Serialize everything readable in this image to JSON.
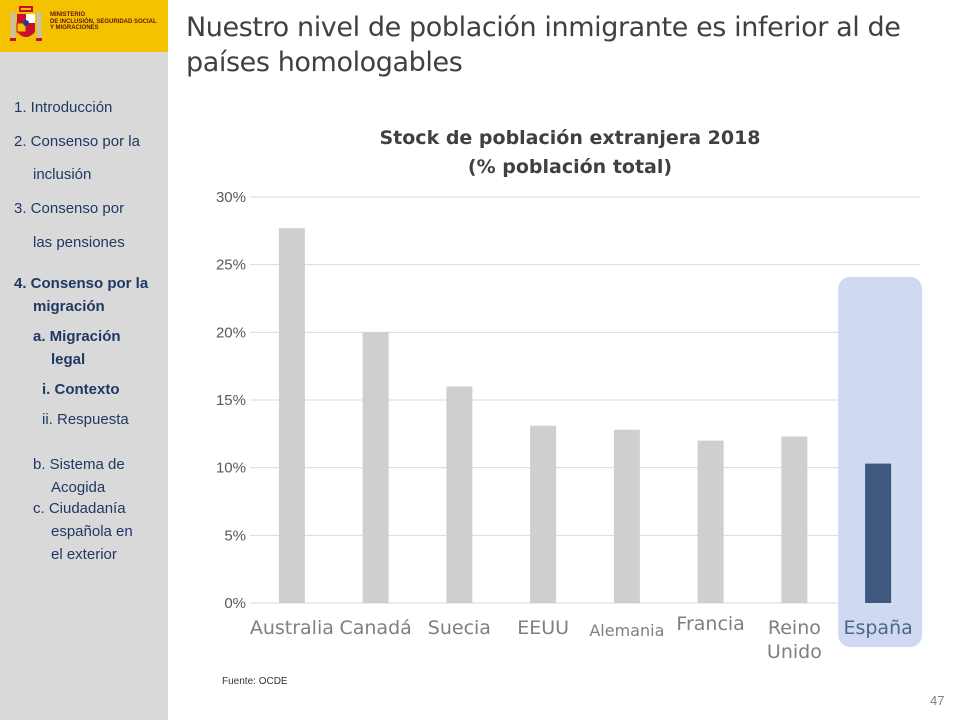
{
  "ministry": {
    "name_lines": [
      "Ministerio",
      "de Inclusión, Seguridad Social",
      "y Migraciones"
    ]
  },
  "nav": {
    "items": [
      {
        "label": "1. Introducción"
      },
      {
        "label": "2. Consenso por la"
      },
      {
        "label": "inclusión"
      },
      {
        "label": "3. Consenso por"
      },
      {
        "label": "las pensiones"
      },
      {
        "label": "4. Consenso por la"
      },
      {
        "label": "migración"
      },
      {
        "label": "a. Migración"
      },
      {
        "label": "legal"
      },
      {
        "label": "i.  Contexto"
      },
      {
        "label": "ii. Respuesta"
      },
      {
        "label": "b. Sistema de"
      },
      {
        "label": "Acogida"
      },
      {
        "label": "c.  Ciudadanía"
      },
      {
        "label": "española en"
      },
      {
        "label": "el exterior"
      }
    ]
  },
  "title": {
    "line1": "Nuestro nivel de población inmigrante es inferior al de",
    "line2": "países homologables"
  },
  "chart_data": {
    "type": "bar",
    "title": "Stock de población extranjera 2018",
    "subtitle": "(% población total)",
    "categories": [
      "Australia",
      "Canadá",
      "Suecia",
      "EEUU",
      "Alemania",
      "Francia",
      "Reino Unido",
      "España"
    ],
    "values": [
      27.7,
      20.0,
      16.0,
      13.1,
      12.8,
      12.0,
      12.3,
      10.3
    ],
    "unit": "%",
    "ylim": [
      0,
      30
    ],
    "yticks": [
      "0%",
      "5%",
      "10%",
      "15%",
      "20%",
      "25%",
      "30%"
    ],
    "grid": true,
    "highlight_category": "España",
    "colors": {
      "default": "#d0cfcf",
      "highlight": "#3f5880",
      "highlight_bg": "#cfd9f1",
      "label": "#7f7f7f",
      "highlight_label": "#4a6a8a"
    }
  },
  "source": "Fuente:  OCDE",
  "page_number": "47"
}
